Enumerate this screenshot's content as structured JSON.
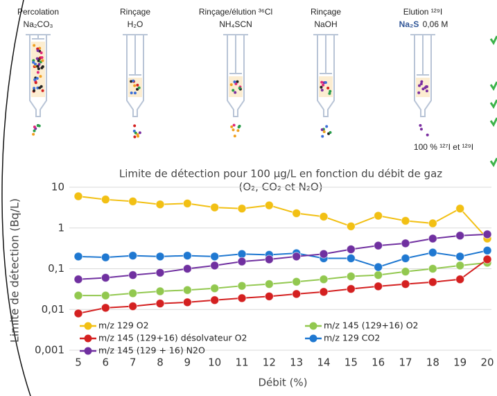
{
  "diagram": {
    "steps": [
      {
        "title": "Percolation",
        "reagent": "Na₂CO₃"
      },
      {
        "title": "Rinçage",
        "reagent": "H₂O"
      },
      {
        "title": "Rinçage/élution ³⁶Cl",
        "reagent": "NH₄SCN"
      },
      {
        "title": "Rinçage",
        "reagent": "NaOH"
      },
      {
        "title": "Elution ¹²⁹I",
        "reagent": "Na₂S",
        "concentration": "0,06 M"
      }
    ],
    "caption": "100 % ¹²⁷I et ¹²⁹I"
  },
  "chart_data": {
    "type": "line",
    "title": "Limite de détection pour 100 µg/L en fonction du débit de gaz",
    "subtitle": "(O₂, CO₂ et N₂O)",
    "x_label": "Débit (%)",
    "y_label": "Limite de détection (Bq/L)",
    "x": [
      5,
      6,
      7,
      8,
      9,
      10,
      11,
      12,
      13,
      14,
      15,
      16,
      17,
      18,
      19,
      20
    ],
    "xlim": [
      5,
      20
    ],
    "xticks": [
      5,
      6,
      7,
      8,
      9,
      10,
      11,
      12,
      13,
      14,
      15,
      16,
      17,
      18,
      19,
      20
    ],
    "ylim": [
      0.001,
      10
    ],
    "yticks": [
      {
        "value": 0.001,
        "label": "0,001"
      },
      {
        "value": 0.01,
        "label": "0,01"
      },
      {
        "value": 0.1,
        "label": "0,1"
      },
      1,
      10
    ],
    "y_scale": "log",
    "grid": true,
    "legend": "lower left",
    "series": [
      {
        "name": "m/z 129 O2",
        "color": "#f2c014",
        "values": [
          6,
          5,
          4.5,
          3.8,
          4,
          3.2,
          3,
          3.6,
          2.3,
          1.9,
          1.1,
          2,
          1.5,
          1.3,
          3,
          0.55
        ]
      },
      {
        "name": "m/z 145 (129+16) O2",
        "color": "#92c84f",
        "values": [
          0.022,
          0.022,
          0.025,
          0.028,
          0.03,
          0.033,
          0.038,
          0.042,
          0.048,
          0.055,
          0.065,
          0.07,
          0.085,
          0.1,
          0.12,
          0.14
        ]
      },
      {
        "name": "m/z 145 (129+16) désolvateur O2",
        "color": "#d42020",
        "values": [
          0.008,
          0.011,
          0.012,
          0.014,
          0.015,
          0.017,
          0.019,
          0.021,
          0.024,
          0.027,
          0.032,
          0.037,
          0.042,
          0.047,
          0.055,
          0.17
        ]
      },
      {
        "name": "m/z 129 CO2",
        "color": "#1f78d1",
        "values": [
          0.2,
          0.19,
          0.21,
          0.2,
          0.21,
          0.2,
          0.23,
          0.22,
          0.24,
          0.18,
          0.18,
          0.11,
          0.18,
          0.25,
          0.2,
          0.28
        ]
      },
      {
        "name": "m/z 145 (129 + 16) N2O",
        "color": "#7030a0",
        "values": [
          0.055,
          0.06,
          0.07,
          0.08,
          0.1,
          0.12,
          0.15,
          0.17,
          0.2,
          0.23,
          0.3,
          0.37,
          0.42,
          0.55,
          0.65,
          0.7
        ]
      }
    ]
  }
}
